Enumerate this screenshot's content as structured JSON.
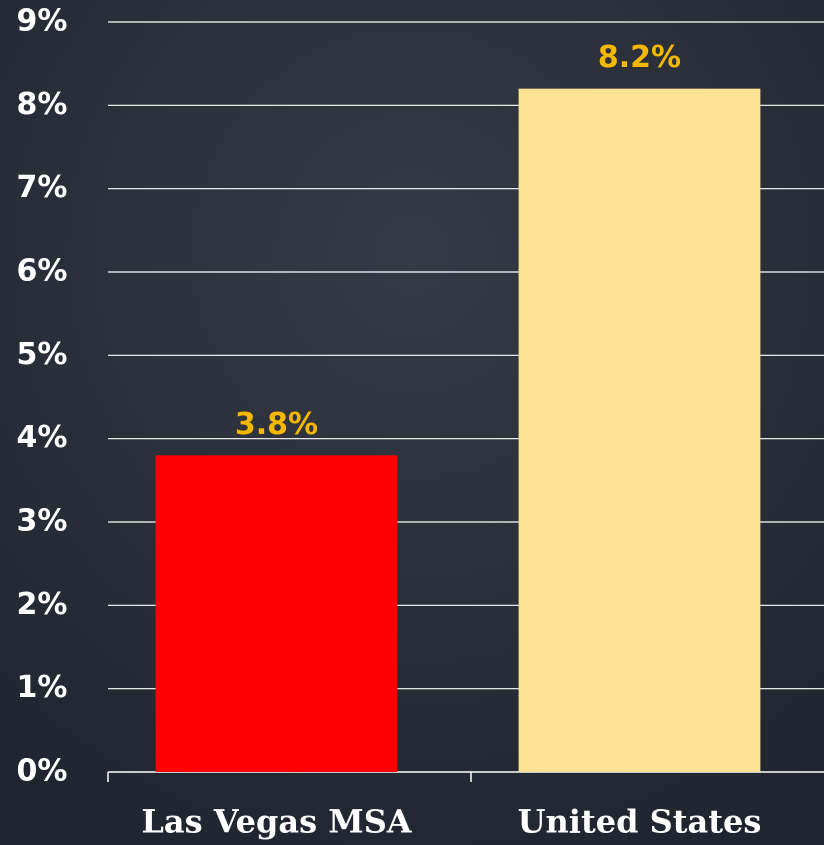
{
  "chart_data": {
    "type": "bar",
    "categories": [
      "Las Vegas MSA",
      "United States"
    ],
    "values": [
      3.8,
      8.2
    ],
    "value_labels": [
      "3.8%",
      "8.2%"
    ],
    "colors": [
      "#ff0000",
      "#fde293"
    ],
    "ylim": [
      0,
      9
    ],
    "yticks": [
      {
        "value": 0,
        "label": "0%"
      },
      {
        "value": 1,
        "label": "1%"
      },
      {
        "value": 2,
        "label": "2%"
      },
      {
        "value": 3,
        "label": "3%"
      },
      {
        "value": 4,
        "label": "4%"
      },
      {
        "value": 5,
        "label": "5%"
      },
      {
        "value": 6,
        "label": "6%"
      },
      {
        "value": 7,
        "label": "7%"
      },
      {
        "value": 8,
        "label": "8%"
      },
      {
        "value": 9,
        "label": "9%"
      }
    ],
    "grid": true
  }
}
